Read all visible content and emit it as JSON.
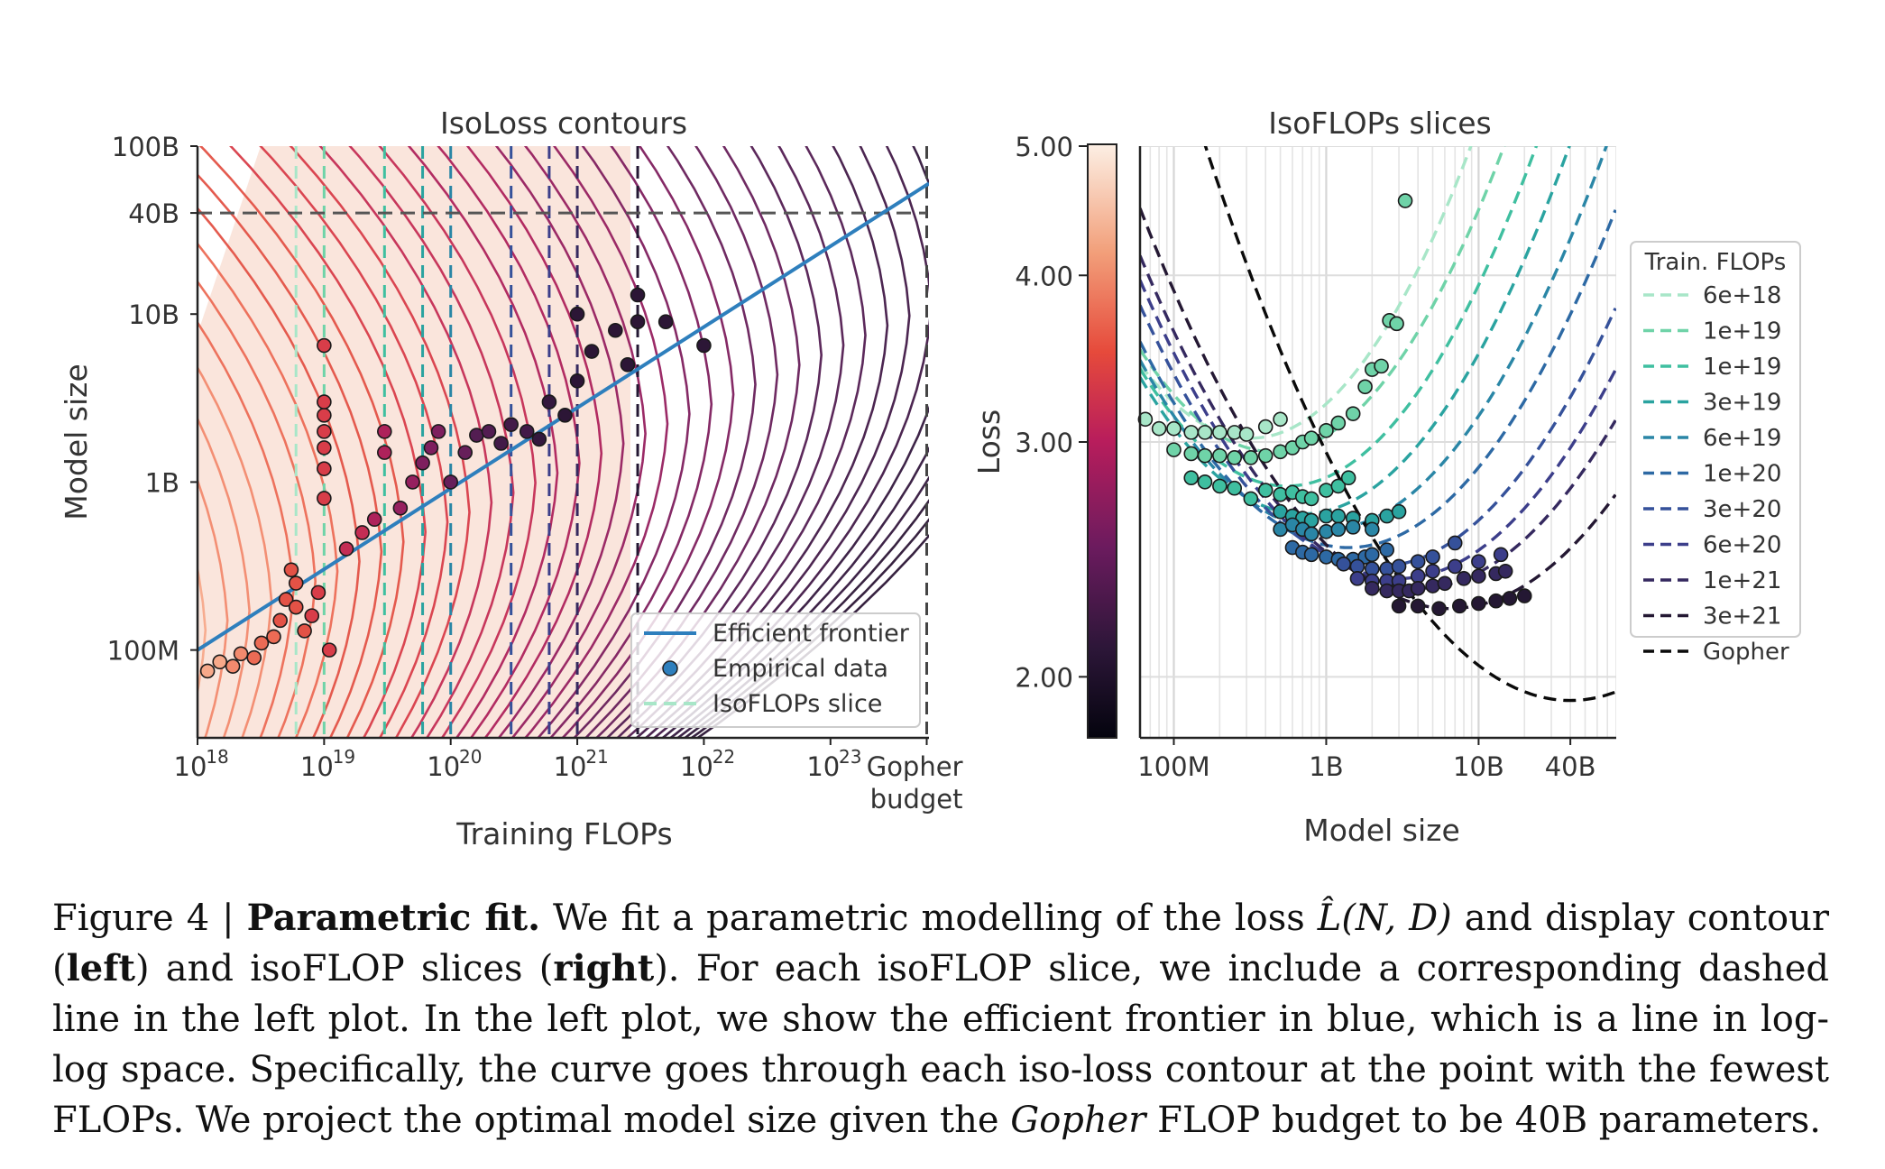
{
  "chart_data": [
    {
      "type": "contour",
      "title": "IsoLoss contours",
      "xlabel": "Training FLOPs",
      "ylabel": "Model size",
      "x_scale": "log",
      "y_scale": "log",
      "xlim": [
        1e+18,
        6e+23
      ],
      "ylim": [
        30000000.0,
        100000000000.0
      ],
      "x_ticks": [
        {
          "value": 1e+18,
          "base": "10",
          "exp": "18"
        },
        {
          "value": 1e+19,
          "base": "10",
          "exp": "19"
        },
        {
          "value": 1e+20,
          "base": "10",
          "exp": "20"
        },
        {
          "value": 1e+21,
          "base": "10",
          "exp": "21"
        },
        {
          "value": 1e+22,
          "base": "10",
          "exp": "22"
        },
        {
          "value": 1e+23,
          "base": "10",
          "exp": "23"
        }
      ],
      "gopher_tick": {
        "value": 5.76e+23,
        "label_line1": "Gopher",
        "label_line2": "budget"
      },
      "y_ticks": [
        {
          "value": 100000000.0,
          "label": "100M"
        },
        {
          "value": 1000000000.0,
          "label": "1B"
        },
        {
          "value": 10000000000.0,
          "label": "10B"
        },
        {
          "value": 40000000000.0,
          "label": "40B"
        },
        {
          "value": 100000000000.0,
          "label": "100B"
        }
      ],
      "projected_model_size": 40000000000.0,
      "efficient_frontier": {
        "name": "Efficient frontier",
        "x": [
          1e+18,
          6e+23
        ],
        "y": [
          100000000.0,
          60000000000.0
        ],
        "color": "#2e7fbd"
      },
      "isoflop_lines": [
        6e+18,
        1e+19,
        3e+19,
        6e+19,
        1e+20,
        3e+20,
        6e+20,
        1e+21,
        3e+21,
        5.76e+23
      ],
      "legend": {
        "position": "lower-right",
        "entries": [
          {
            "label": "Efficient frontier",
            "kind": "line",
            "color": "#2e7fbd"
          },
          {
            "label": "Empirical data",
            "kind": "marker",
            "color": "#2e7fbd"
          },
          {
            "label": "IsoFLOPs slice",
            "kind": "dashed",
            "color": "#a8e6c8"
          }
        ]
      },
      "empirical_points": [
        {
          "x": 1.2e+18,
          "y": 75000000.0
        },
        {
          "x": 1.5e+18,
          "y": 85000000.0
        },
        {
          "x": 1.9e+18,
          "y": 80000000.0
        },
        {
          "x": 2.2e+18,
          "y": 95000000.0
        },
        {
          "x": 2.8e+18,
          "y": 90000000.0
        },
        {
          "x": 3.2e+18,
          "y": 110000000.0
        },
        {
          "x": 4e+18,
          "y": 120000000.0
        },
        {
          "x": 4.5e+18,
          "y": 150000000.0
        },
        {
          "x": 5e+18,
          "y": 200000000.0
        },
        {
          "x": 5.5e+18,
          "y": 300000000.0
        },
        {
          "x": 6e+18,
          "y": 250000000.0
        },
        {
          "x": 6e+18,
          "y": 180000000.0
        },
        {
          "x": 7e+18,
          "y": 130000000.0
        },
        {
          "x": 8e+18,
          "y": 160000000.0
        },
        {
          "x": 9e+18,
          "y": 220000000.0
        },
        {
          "x": 1e+19,
          "y": 800000000.0
        },
        {
          "x": 1e+19,
          "y": 1200000000.0
        },
        {
          "x": 1e+19,
          "y": 1600000000.0
        },
        {
          "x": 1e+19,
          "y": 2000000000.0
        },
        {
          "x": 1e+19,
          "y": 2500000000.0
        },
        {
          "x": 1e+19,
          "y": 3000000000.0
        },
        {
          "x": 1e+19,
          "y": 6500000000.0
        },
        {
          "x": 1.1e+19,
          "y": 100000000.0
        },
        {
          "x": 1.5e+19,
          "y": 400000000.0
        },
        {
          "x": 2e+19,
          "y": 500000000.0
        },
        {
          "x": 2.5e+19,
          "y": 600000000.0
        },
        {
          "x": 3e+19,
          "y": 1500000000.0
        },
        {
          "x": 3e+19,
          "y": 2000000000.0
        },
        {
          "x": 4e+19,
          "y": 700000000.0
        },
        {
          "x": 5e+19,
          "y": 1000000000.0
        },
        {
          "x": 6e+19,
          "y": 1300000000.0
        },
        {
          "x": 7e+19,
          "y": 1600000000.0
        },
        {
          "x": 8e+19,
          "y": 2000000000.0
        },
        {
          "x": 1e+20,
          "y": 1000000000.0
        },
        {
          "x": 1.3e+20,
          "y": 1500000000.0
        },
        {
          "x": 1.6e+20,
          "y": 1900000000.0
        },
        {
          "x": 2e+20,
          "y": 2000000000.0
        },
        {
          "x": 2.5e+20,
          "y": 1700000000.0
        },
        {
          "x": 3e+20,
          "y": 2200000000.0
        },
        {
          "x": 4e+20,
          "y": 2000000000.0
        },
        {
          "x": 5e+20,
          "y": 1800000000.0
        },
        {
          "x": 6e+20,
          "y": 3000000000.0
        },
        {
          "x": 8e+20,
          "y": 2500000000.0
        },
        {
          "x": 1e+21,
          "y": 4000000000.0
        },
        {
          "x": 1e+21,
          "y": 10000000000.0
        },
        {
          "x": 1.3e+21,
          "y": 6000000000.0
        },
        {
          "x": 2e+21,
          "y": 8000000000.0
        },
        {
          "x": 2.5e+21,
          "y": 5000000000.0
        },
        {
          "x": 3e+21,
          "y": 9000000000.0
        },
        {
          "x": 3e+21,
          "y": 13000000000.0
        },
        {
          "x": 5e+21,
          "y": 9000000000.0
        },
        {
          "x": 1e+22,
          "y": 6500000000.0
        }
      ]
    },
    {
      "type": "scatter+line",
      "title": "IsoFLOPs slices",
      "xlabel": "Model size",
      "ylabel": "Loss",
      "x_scale": "log",
      "y_scale": "log",
      "xlim": [
        60000000.0,
        80000000000.0
      ],
      "ylim": [
        1.8,
        5.0
      ],
      "x_ticks": [
        {
          "value": 100000000.0,
          "label": "100M"
        },
        {
          "value": 1000000000.0,
          "label": "1B"
        },
        {
          "value": 10000000000.0,
          "label": "10B"
        },
        {
          "value": 40000000000.0,
          "label": "40B"
        }
      ],
      "y_ticks": [
        {
          "value": 2.0,
          "label": "2.00"
        },
        {
          "value": 3.0,
          "label": "3.00"
        },
        {
          "value": 4.0,
          "label": "4.00"
        },
        {
          "value": 5.0,
          "label": "5.00"
        }
      ],
      "colorbar": {
        "colors": [
          "#fcefe4",
          "#f2a07b",
          "#e64a3b",
          "#b81d5c",
          "#6b1b5e",
          "#2c1638",
          "#04040e"
        ]
      },
      "legend": {
        "title": "Train. FLOPs",
        "position": "right"
      },
      "series": [
        {
          "name": "6e+18",
          "color": "#a8e6c8",
          "opt_n": 320000000.0,
          "opt_loss": 3.02,
          "k": 0.42,
          "points": [
            {
              "x": 65000000.0,
              "y": 3.12
            },
            {
              "x": 80000000.0,
              "y": 3.07
            },
            {
              "x": 100000000.0,
              "y": 3.07
            },
            {
              "x": 130000000.0,
              "y": 3.05
            },
            {
              "x": 160000000.0,
              "y": 3.05
            },
            {
              "x": 200000000.0,
              "y": 3.05
            },
            {
              "x": 250000000.0,
              "y": 3.05
            },
            {
              "x": 300000000.0,
              "y": 3.04
            },
            {
              "x": 400000000.0,
              "y": 3.08
            },
            {
              "x": 500000000.0,
              "y": 3.12
            }
          ]
        },
        {
          "name": "1e+19",
          "color": "#6fd3a8",
          "opt_n": 450000000.0,
          "opt_loss": 2.95,
          "k": 0.4,
          "points": [
            {
              "x": 100000000.0,
              "y": 2.96
            },
            {
              "x": 130000000.0,
              "y": 2.94
            },
            {
              "x": 160000000.0,
              "y": 2.93
            },
            {
              "x": 200000000.0,
              "y": 2.93
            },
            {
              "x": 250000000.0,
              "y": 2.92
            },
            {
              "x": 320000000.0,
              "y": 2.92
            },
            {
              "x": 400000000.0,
              "y": 2.93
            },
            {
              "x": 500000000.0,
              "y": 2.95
            },
            {
              "x": 600000000.0,
              "y": 2.97
            },
            {
              "x": 700000000.0,
              "y": 3.0
            },
            {
              "x": 800000000.0,
              "y": 3.02
            },
            {
              "x": 1000000000.0,
              "y": 3.06
            },
            {
              "x": 1200000000.0,
              "y": 3.1
            },
            {
              "x": 1500000000.0,
              "y": 3.15
            },
            {
              "x": 1800000000.0,
              "y": 3.3
            },
            {
              "x": 2000000000.0,
              "y": 3.4
            },
            {
              "x": 2300000000.0,
              "y": 3.42
            },
            {
              "x": 2600000000.0,
              "y": 3.7
            },
            {
              "x": 2900000000.0,
              "y": 3.68
            },
            {
              "x": 3300000000.0,
              "y": 4.55
            }
          ]
        },
        {
          "name": "1e+19",
          "color": "#3fbfa0",
          "opt_n": 550000000.0,
          "opt_loss": 2.78,
          "k": 0.38,
          "points": [
            {
              "x": 130000000.0,
              "y": 2.82
            },
            {
              "x": 160000000.0,
              "y": 2.8
            },
            {
              "x": 200000000.0,
              "y": 2.78
            },
            {
              "x": 250000000.0,
              "y": 2.77
            },
            {
              "x": 320000000.0,
              "y": 2.72
            },
            {
              "x": 400000000.0,
              "y": 2.76
            },
            {
              "x": 500000000.0,
              "y": 2.74
            },
            {
              "x": 600000000.0,
              "y": 2.75
            },
            {
              "x": 700000000.0,
              "y": 2.73
            },
            {
              "x": 800000000.0,
              "y": 2.72
            },
            {
              "x": 1000000000.0,
              "y": 2.76
            },
            {
              "x": 1200000000.0,
              "y": 2.78
            },
            {
              "x": 1400000000.0,
              "y": 2.82
            }
          ]
        },
        {
          "name": "3e+19",
          "color": "#2aa3a0",
          "opt_n": 700000000.0,
          "opt_loss": 2.65,
          "k": 0.36,
          "points": [
            {
              "x": 500000000.0,
              "y": 2.66
            },
            {
              "x": 600000000.0,
              "y": 2.64
            },
            {
              "x": 700000000.0,
              "y": 2.63
            },
            {
              "x": 800000000.0,
              "y": 2.62
            },
            {
              "x": 1000000000.0,
              "y": 2.64
            },
            {
              "x": 1200000000.0,
              "y": 2.64
            },
            {
              "x": 1500000000.0,
              "y": 2.63
            },
            {
              "x": 2000000000.0,
              "y": 2.62
            },
            {
              "x": 2500000000.0,
              "y": 2.64
            },
            {
              "x": 3000000000.0,
              "y": 2.66
            }
          ]
        },
        {
          "name": "6e+19",
          "color": "#2a86a6",
          "opt_n": 1000000000.0,
          "opt_loss": 2.58,
          "k": 0.34,
          "points": [
            {
              "x": 500000000.0,
              "y": 2.58
            },
            {
              "x": 600000000.0,
              "y": 2.6
            },
            {
              "x": 700000000.0,
              "y": 2.58
            },
            {
              "x": 800000000.0,
              "y": 2.56
            },
            {
              "x": 1000000000.0,
              "y": 2.57
            },
            {
              "x": 1200000000.0,
              "y": 2.58
            },
            {
              "x": 1500000000.0,
              "y": 2.59
            },
            {
              "x": 2000000000.0,
              "y": 2.58
            }
          ]
        },
        {
          "name": "1e+20",
          "color": "#2d69a4",
          "opt_n": 1400000000.0,
          "opt_loss": 2.5,
          "k": 0.33,
          "points": [
            {
              "x": 600000000.0,
              "y": 2.5
            },
            {
              "x": 700000000.0,
              "y": 2.48
            },
            {
              "x": 800000000.0,
              "y": 2.47
            },
            {
              "x": 1000000000.0,
              "y": 2.46
            },
            {
              "x": 1200000000.0,
              "y": 2.45
            },
            {
              "x": 1500000000.0,
              "y": 2.45
            },
            {
              "x": 1800000000.0,
              "y": 2.46
            },
            {
              "x": 2000000000.0,
              "y": 2.47
            },
            {
              "x": 2500000000.0,
              "y": 2.49
            }
          ]
        },
        {
          "name": "3e+20",
          "color": "#35519a",
          "opt_n": 2200000000.0,
          "opt_loss": 2.42,
          "k": 0.32,
          "points": [
            {
              "x": 1300000000.0,
              "y": 2.43
            },
            {
              "x": 1600000000.0,
              "y": 2.42
            },
            {
              "x": 2000000000.0,
              "y": 2.41
            },
            {
              "x": 2500000000.0,
              "y": 2.41
            },
            {
              "x": 3000000000.0,
              "y": 2.42
            },
            {
              "x": 4000000000.0,
              "y": 2.44
            },
            {
              "x": 5000000000.0,
              "y": 2.46
            },
            {
              "x": 7000000000.0,
              "y": 2.52
            }
          ]
        },
        {
          "name": "6e+20",
          "color": "#3c3e8a",
          "opt_n": 3000000000.0,
          "opt_loss": 2.37,
          "k": 0.31,
          "points": [
            {
              "x": 1600000000.0,
              "y": 2.37
            },
            {
              "x": 2000000000.0,
              "y": 2.36
            },
            {
              "x": 2500000000.0,
              "y": 2.36
            },
            {
              "x": 3000000000.0,
              "y": 2.36
            },
            {
              "x": 4000000000.0,
              "y": 2.38
            },
            {
              "x": 5000000000.0,
              "y": 2.4
            },
            {
              "x": 7000000000.0,
              "y": 2.42
            },
            {
              "x": 10000000000.0,
              "y": 2.44
            },
            {
              "x": 14000000000.0,
              "y": 2.47
            }
          ]
        },
        {
          "name": "1e+21",
          "color": "#35295f",
          "opt_n": 4000000000.0,
          "opt_loss": 2.33,
          "k": 0.3,
          "points": [
            {
              "x": 2000000000.0,
              "y": 2.33
            },
            {
              "x": 2500000000.0,
              "y": 2.32
            },
            {
              "x": 3000000000.0,
              "y": 2.32
            },
            {
              "x": 3500000000.0,
              "y": 2.32
            },
            {
              "x": 4000000000.0,
              "y": 2.33
            },
            {
              "x": 5000000000.0,
              "y": 2.34
            },
            {
              "x": 6000000000.0,
              "y": 2.35
            },
            {
              "x": 8000000000.0,
              "y": 2.37
            },
            {
              "x": 10000000000.0,
              "y": 2.38
            },
            {
              "x": 13000000000.0,
              "y": 2.39
            },
            {
              "x": 15000000000.0,
              "y": 2.4
            }
          ]
        },
        {
          "name": "3e+21",
          "color": "#241833",
          "opt_n": 6500000000.0,
          "opt_loss": 2.25,
          "k": 0.29,
          "points": [
            {
              "x": 3000000000.0,
              "y": 2.26
            },
            {
              "x": 4000000000.0,
              "y": 2.26
            },
            {
              "x": 5500000000.0,
              "y": 2.25
            },
            {
              "x": 7500000000.0,
              "y": 2.26
            },
            {
              "x": 10000000000.0,
              "y": 2.27
            },
            {
              "x": 13000000000.0,
              "y": 2.28
            },
            {
              "x": 16000000000.0,
              "y": 2.29
            },
            {
              "x": 20000000000.0,
              "y": 2.3
            }
          ]
        },
        {
          "name": "Gopher",
          "color": "#0a0a0a",
          "opt_n": 40000000000.0,
          "opt_loss": 1.92,
          "k": 0.29,
          "points": []
        }
      ]
    }
  ],
  "caption": {
    "label": "Figure 4 | ",
    "bold_title": "Parametric fit.",
    "t1": " We fit a parametric modelling of the loss ",
    "math": "L̂(N, D)",
    "t2": " and display contour (",
    "left": "left",
    "t3": ") and isoFLOP slices (",
    "right": "right",
    "t4": "). For each isoFLOP slice, we include a corresponding dashed line in the left plot. In the left plot, we show the efficient frontier in blue, which is a line in log-log space. Specifically, the curve goes through each iso-loss contour at the point with the fewest FLOPs. We project the optimal model size given the ",
    "gopher": "Gopher",
    "t5": " FLOP budget to be 40B parameters."
  }
}
